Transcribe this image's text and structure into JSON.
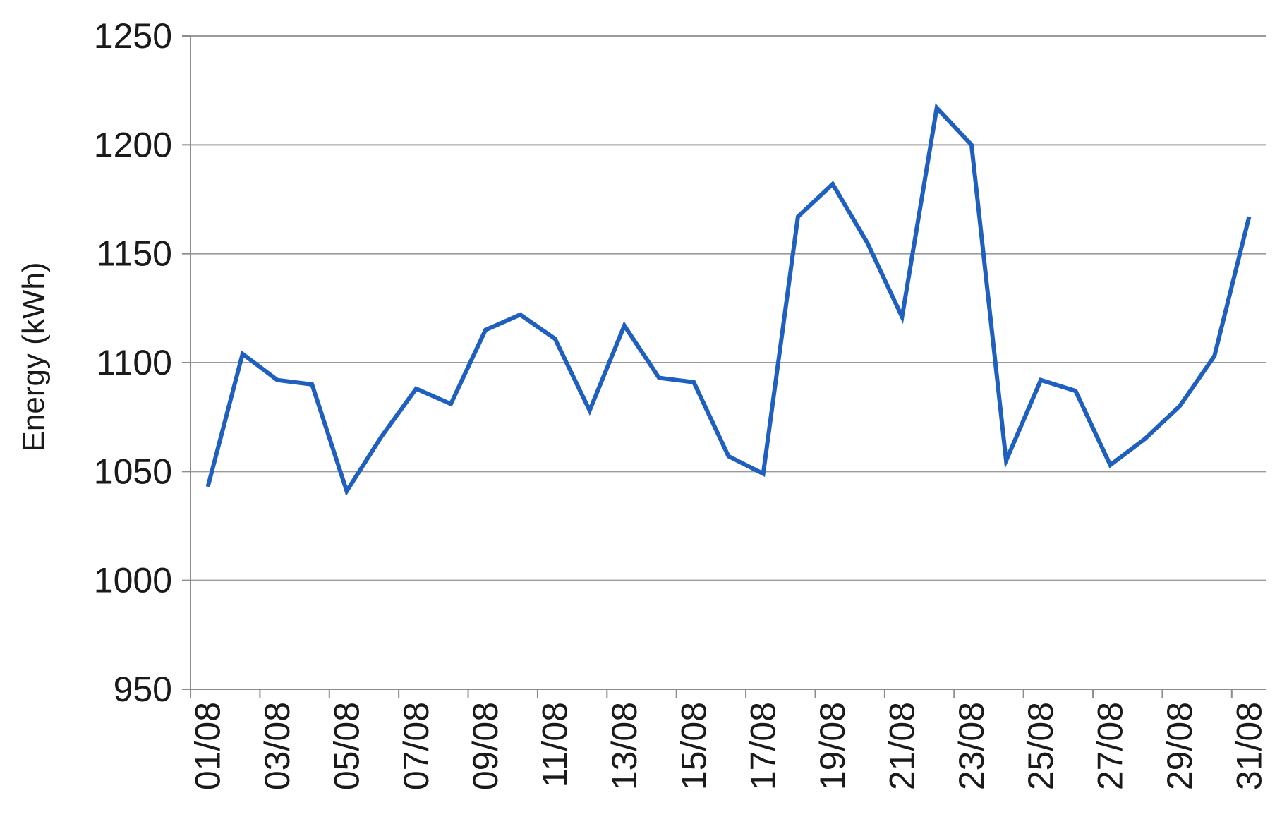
{
  "chart_data": {
    "type": "line",
    "title": "",
    "xlabel": "",
    "ylabel": "Energy (kWh)",
    "ylim": [
      950,
      1250
    ],
    "yticks": [
      950,
      1000,
      1050,
      1100,
      1150,
      1200,
      1250
    ],
    "grid": true,
    "x_tick_labels": [
      "01/08",
      "03/08",
      "05/08",
      "07/08",
      "09/08",
      "11/08",
      "13/08",
      "15/08",
      "17/08",
      "19/08",
      "21/08",
      "23/08",
      "25/08",
      "27/08",
      "29/08",
      "31/08"
    ],
    "x": [
      "01/08",
      "02/08",
      "03/08",
      "04/08",
      "05/08",
      "06/08",
      "07/08",
      "08/08",
      "09/08",
      "10/08",
      "11/08",
      "12/08",
      "13/08",
      "14/08",
      "15/08",
      "16/08",
      "17/08",
      "18/08",
      "19/08",
      "20/08",
      "21/08",
      "22/08",
      "23/08",
      "24/08",
      "25/08",
      "26/08",
      "27/08",
      "28/08",
      "29/08",
      "30/08",
      "31/08"
    ],
    "series": [
      {
        "color": "#1f5fbf",
        "values": [
          1043,
          1104,
          1092,
          1090,
          1041,
          1066,
          1088,
          1081,
          1115,
          1122,
          1111,
          1078,
          1117,
          1093,
          1091,
          1057,
          1049,
          1167,
          1182,
          1155,
          1121,
          1217,
          1200,
          1055,
          1092,
          1087,
          1053,
          1065,
          1080,
          1103,
          1167
        ]
      }
    ]
  }
}
